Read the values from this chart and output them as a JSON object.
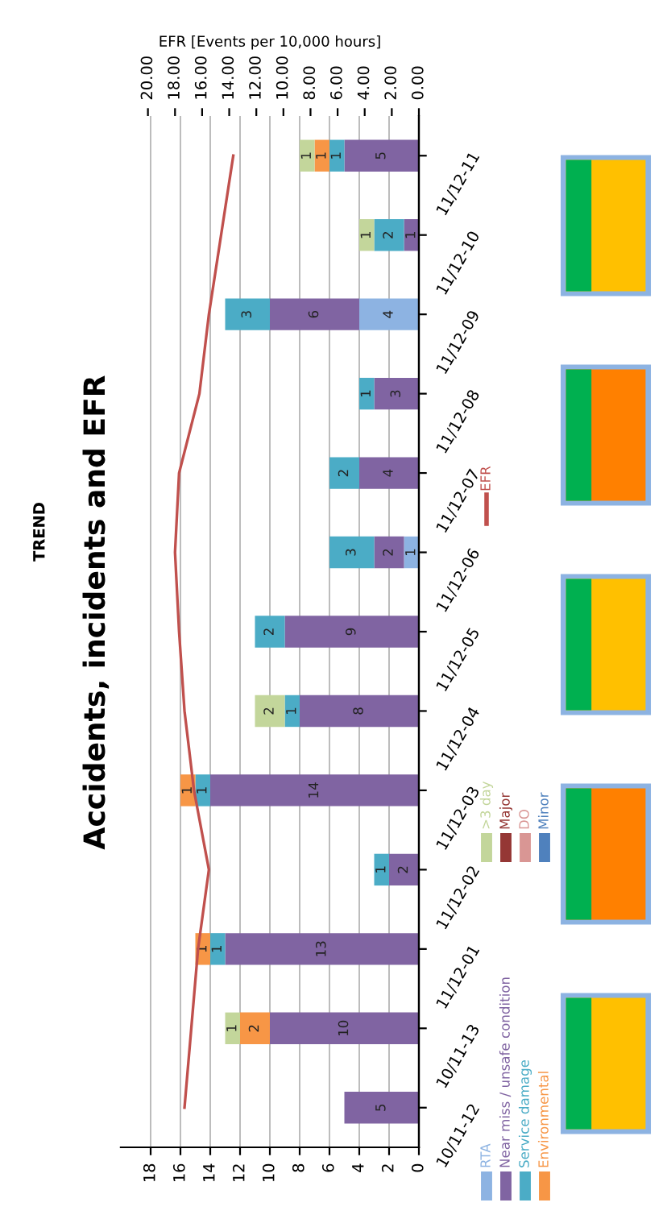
{
  "chart_data": {
    "type": "bar",
    "orientation": "horizontal",
    "stacked": true,
    "title": "Accidents, incidents and EFR",
    "subtitle": "TREND",
    "x2label": "EFR [Events per 10,000 hours]",
    "categories": [
      "11/12-11",
      "11/12-10",
      "11/12-09",
      "11/12-08",
      "11/12-07",
      "11/12-06",
      "11/12-05",
      "11/12-04",
      "11/12-03",
      "11/12-02",
      "11/12-01",
      "10/11-13",
      "10/11-12"
    ],
    "series": [
      {
        "name": "RTA",
        "color": "#8db3e2",
        "values": [
          0,
          0,
          4,
          0,
          0,
          1,
          0,
          0,
          0,
          0,
          0,
          0,
          0
        ],
        "value_labels": [
          null,
          null,
          "4",
          null,
          null,
          "1",
          null,
          null,
          null,
          null,
          null,
          null,
          null
        ]
      },
      {
        "name": "Near miss / unsafe condition",
        "color": "#8064a2",
        "values": [
          5,
          1,
          6,
          3,
          4,
          2,
          9,
          8,
          14,
          2,
          13,
          10,
          5
        ],
        "value_labels": [
          "5",
          "1",
          "6",
          "3",
          "4",
          "2",
          "9",
          "8",
          "14",
          "2",
          "13",
          "10",
          "5"
        ]
      },
      {
        "name": "Service damage",
        "color": "#4bacc6",
        "values": [
          1,
          2,
          3,
          1,
          2,
          3,
          2,
          1,
          1,
          1,
          1,
          0,
          0
        ],
        "value_labels": [
          "1",
          "2",
          "3",
          "1",
          "2",
          "3",
          "2",
          "1",
          "1",
          "1",
          "1",
          null,
          null
        ]
      },
      {
        "name": "Environmental",
        "color": "#f79646",
        "values": [
          1,
          0,
          0,
          0,
          0,
          0,
          0,
          0,
          1,
          0,
          1,
          2,
          0
        ],
        "value_labels": [
          "1",
          null,
          null,
          null,
          null,
          null,
          null,
          null,
          "1",
          null,
          "1",
          "2",
          null
        ]
      },
      {
        "name": ">3 day",
        "color": "#c3d69b",
        "values": [
          1,
          1,
          0,
          0,
          0,
          0,
          0,
          2,
          0,
          0,
          0,
          1,
          0
        ],
        "value_labels": [
          "1",
          "1",
          null,
          null,
          null,
          null,
          null,
          "2",
          null,
          null,
          null,
          "1",
          null
        ]
      },
      {
        "name": "Major",
        "color": "#953735",
        "values": [
          0,
          0,
          0,
          0,
          0,
          0,
          0,
          0,
          0,
          0,
          0,
          0,
          0
        ]
      },
      {
        "name": "DO",
        "color": "#d99694",
        "values": [
          0,
          0,
          0,
          0,
          0,
          0,
          0,
          0,
          0,
          0,
          0,
          0,
          0
        ]
      },
      {
        "name": "Minor",
        "color": "#4f81bd",
        "values": [
          0,
          0,
          0,
          0,
          0,
          0,
          0,
          0,
          0,
          0,
          0,
          0,
          0
        ]
      },
      {
        "name": "EFR",
        "type": "line",
        "axis": "x2",
        "color": "#c0504d",
        "values": [
          13.7,
          14.6,
          15.5,
          16.2,
          17.7,
          18.0,
          17.7,
          17.3,
          16.6,
          15.5,
          16.3,
          16.8,
          17.3
        ]
      }
    ],
    "xlim": [
      20,
      0
    ],
    "xticks": [
      0,
      2,
      4,
      6,
      8,
      10,
      12,
      14,
      16,
      18
    ],
    "x2lim": [
      22,
      0
    ],
    "x2ticks": [
      {
        "value": 0,
        "label": "0.00"
      },
      {
        "value": 2,
        "label": "2.00"
      },
      {
        "value": 4,
        "label": "4.00"
      },
      {
        "value": 6,
        "label": "6.00"
      },
      {
        "value": 8,
        "label": "8.00"
      },
      {
        "value": 10,
        "label": "10.00"
      },
      {
        "value": 12,
        "label": "12.00"
      },
      {
        "value": 14,
        "label": "14.00"
      },
      {
        "value": 16,
        "label": "16.00"
      },
      {
        "value": 18,
        "label": "18.00"
      },
      {
        "value": 20,
        "label": "20.00"
      }
    ],
    "grid": "x",
    "legend": "right"
  }
}
